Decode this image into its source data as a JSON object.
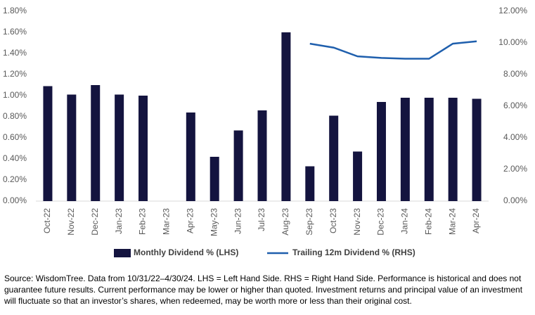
{
  "chart_data": {
    "type": "bar",
    "categories": [
      "Oct-22",
      "Nov-22",
      "Dec-22",
      "Jan-23",
      "Feb-23",
      "Mar-23",
      "Apr-23",
      "May-23",
      "Jun-23",
      "Jul-23",
      "Aug-23",
      "Sep-23",
      "Oct-23",
      "Nov-23",
      "Dec-23",
      "Jan-24",
      "Feb-24",
      "Mar-24",
      "Apr-24"
    ],
    "series": [
      {
        "name": "Monthly Dividend % (LHS)",
        "type": "bar",
        "color": "#14143f",
        "values": [
          1.09,
          1.01,
          1.1,
          1.01,
          1.0,
          0,
          0.84,
          0.42,
          0.67,
          0.86,
          1.6,
          0.33,
          0.81,
          0.47,
          0.94,
          0.98,
          0.98,
          0.98,
          0.97
        ]
      },
      {
        "name": "Trailing 12m Dividend % (RHS)",
        "type": "line",
        "axis": "y2",
        "color": "#1f5fad",
        "values": [
          null,
          null,
          null,
          null,
          null,
          null,
          null,
          null,
          null,
          null,
          null,
          9.95,
          9.7,
          9.15,
          9.05,
          9.0,
          9.0,
          9.95,
          10.1
        ]
      }
    ],
    "ylim": [
      0,
      1.8
    ],
    "yticks": [
      {
        "value": 0,
        "label": "0.00%"
      },
      {
        "value": 0.2,
        "label": "0.20%"
      },
      {
        "value": 0.4,
        "label": "0.40%"
      },
      {
        "value": 0.6,
        "label": "0.60%"
      },
      {
        "value": 0.8,
        "label": "0.80%"
      },
      {
        "value": 1.0,
        "label": "1.00%"
      },
      {
        "value": 1.2,
        "label": "1.20%"
      },
      {
        "value": 1.4,
        "label": "1.40%"
      },
      {
        "value": 1.6,
        "label": "1.60%"
      },
      {
        "value": 1.8,
        "label": "1.80%"
      }
    ],
    "y2lim": [
      0,
      12
    ],
    "y2ticks": [
      {
        "value": 0,
        "label": "0.00%"
      },
      {
        "value": 2,
        "label": "2.00%"
      },
      {
        "value": 4,
        "label": "4.00%"
      },
      {
        "value": 6,
        "label": "6.00%"
      },
      {
        "value": 8,
        "label": "8.00%"
      },
      {
        "value": 10,
        "label": "10.00%"
      },
      {
        "value": 12,
        "label": "12.00%"
      }
    ],
    "grid": false,
    "caption": "Source: WisdomTree. Data from 10/31/22–4/30/24. LHS = Left Hand Side. RHS = Right Hand Side. Performance is historical and does not guarantee future results. Current performance may be lower or higher than quoted. Investment returns and principal value of an investment will fluctuate so that an investor’s shares, when redeemed, may be worth more or less than their original cost."
  }
}
